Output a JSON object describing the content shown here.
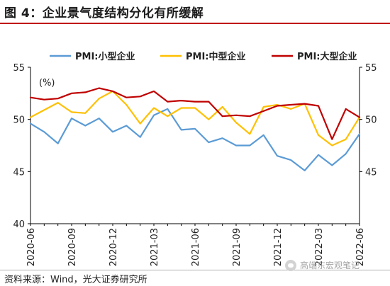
{
  "figure": {
    "title": "图 4：企业景气度结构分化有所缓解",
    "source": "资料来源：Wind，光大证券研究所",
    "watermark": "高端东宏观笔记"
  },
  "chart_data": {
    "type": "line",
    "unit_label": "(%)",
    "x": [
      "2020-06",
      "2020-07",
      "2020-08",
      "2020-09",
      "2020-10",
      "2020-11",
      "2020-12",
      "2021-01",
      "2021-02",
      "2021-03",
      "2021-04",
      "2021-05",
      "2021-06",
      "2021-07",
      "2021-08",
      "2021-09",
      "2021-10",
      "2021-11",
      "2021-12",
      "2022-01",
      "2022-02",
      "2022-03",
      "2022-04",
      "2022-05",
      "2022-06"
    ],
    "x_tick_labels": [
      "2020-06",
      "2020-09",
      "2020-12",
      "2021-03",
      "2021-06",
      "2021-09",
      "2021-12",
      "2022-03",
      "2022-06"
    ],
    "x_tick_values": [
      "2020-06",
      "2020-09",
      "2020-12",
      "2021-03",
      "2021-06",
      "2021-09",
      "2021-12",
      "2022-03",
      "2022-06"
    ],
    "ylim": [
      40,
      55
    ],
    "yticks": [
      40,
      45,
      50,
      55
    ],
    "y2ticks": [
      45,
      50,
      55
    ],
    "series": [
      {
        "name": "PMI:小型企业",
        "color": "#5b9bd5",
        "values": [
          49.6,
          48.8,
          47.7,
          50.1,
          49.4,
          50.1,
          48.8,
          49.4,
          48.3,
          50.4,
          51.0,
          49.0,
          49.1,
          47.8,
          48.2,
          47.5,
          47.5,
          48.5,
          46.5,
          46.1,
          45.1,
          46.6,
          45.6,
          46.7,
          48.6
        ]
      },
      {
        "name": "PMI:中型企业",
        "color": "#ffc000",
        "values": [
          50.2,
          50.9,
          51.6,
          50.7,
          50.6,
          52.0,
          52.7,
          51.4,
          49.6,
          51.1,
          50.3,
          51.1,
          51.1,
          50.0,
          51.2,
          49.7,
          48.6,
          51.2,
          51.4,
          51.0,
          51.5,
          48.5,
          47.5,
          48.1,
          50.2
        ]
      },
      {
        "name": "PMI:大型企业",
        "color": "#c00000",
        "values": [
          52.1,
          51.9,
          52.0,
          52.5,
          52.6,
          53.0,
          52.7,
          52.1,
          52.2,
          52.7,
          51.7,
          51.8,
          51.7,
          51.7,
          50.3,
          50.4,
          50.3,
          50.8,
          51.3,
          51.4,
          51.5,
          51.3,
          48.1,
          51.0,
          50.2
        ]
      }
    ],
    "grid": false,
    "legend_position": "top"
  }
}
